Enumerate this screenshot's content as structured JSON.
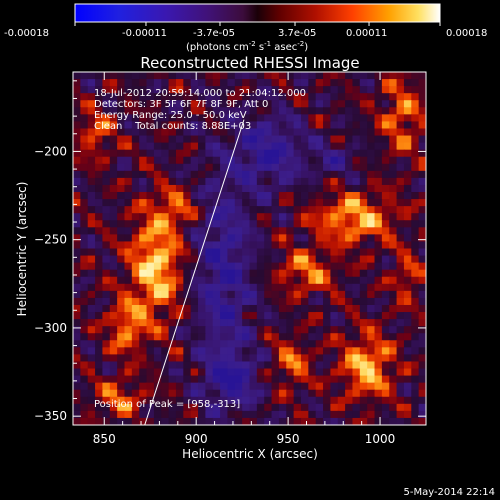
{
  "chart_data": {
    "type": "heatmap",
    "title": "Reconstructed RHESSI Image",
    "xlabel": "Heliocentric X (arcsec)",
    "ylabel": "Heliocentric Y (arcsec)",
    "xlim": [
      833,
      1025
    ],
    "ylim": [
      -355,
      -155
    ],
    "x_ticks": [
      850,
      900,
      950,
      1000
    ],
    "y_ticks": [
      -200,
      -250,
      -300,
      -350
    ],
    "colorbar": {
      "min": -0.00018,
      "max": 0.00018,
      "tick_labels": [
        "-0.00018",
        "-0.00011",
        "-3.7e-05",
        "3.7e-05",
        "0.00011",
        "0.00018"
      ],
      "tick_values": [
        -0.00018,
        -0.00011,
        -3.7e-05,
        3.7e-05,
        0.00011,
        0.00018
      ],
      "units_main": "(photons cm",
      "units_sup1": "-2",
      "units_mid1": " s",
      "units_sup2": "-1",
      "units_mid2": " asec",
      "units_sup3": "-2",
      "units_end": ")"
    },
    "annotations": [
      "18-Jul-2012 20:59:14.000 to 21:04:12.000",
      "Detectors: 3F 5F 6F 7F 8F 9F, Att 0",
      "Energy Range: 25.0 - 50.0 keV",
      "Clean    Total counts: 8.88E+03"
    ],
    "peak_label": "Position of Peak = [958,-313]",
    "peak": [
      958,
      -313
    ],
    "limb_line": [
      [
        872,
        -355
      ],
      [
        926,
        -182
      ]
    ],
    "hot_regions": [
      {
        "x": 878,
        "y": -265,
        "sx": 14,
        "sy": 30,
        "amp": 1.0
      },
      {
        "x": 862,
        "y": -300,
        "sx": 10,
        "sy": 15,
        "amp": 0.7
      },
      {
        "x": 890,
        "y": -232,
        "sx": 12,
        "sy": 10,
        "amp": 0.55
      },
      {
        "x": 986,
        "y": -238,
        "sx": 22,
        "sy": 14,
        "amp": 0.85
      },
      {
        "x": 960,
        "y": -268,
        "sx": 16,
        "sy": 12,
        "amp": 0.65
      },
      {
        "x": 993,
        "y": -322,
        "sx": 14,
        "sy": 18,
        "amp": 0.9
      },
      {
        "x": 952,
        "y": -320,
        "sx": 10,
        "sy": 14,
        "amp": 0.6
      },
      {
        "x": 1012,
        "y": -180,
        "sx": 12,
        "sy": 22,
        "amp": 0.6
      },
      {
        "x": 845,
        "y": -190,
        "sx": 10,
        "sy": 14,
        "amp": 0.55
      },
      {
        "x": 858,
        "y": -340,
        "sx": 14,
        "sy": 10,
        "amp": 0.6
      },
      {
        "x": 1015,
        "y": -272,
        "sx": 8,
        "sy": 14,
        "amp": 0.5
      }
    ],
    "cool_regions": [
      {
        "x": 915,
        "y": -270,
        "sx": 16,
        "sy": 60,
        "amp": 0.75
      },
      {
        "x": 940,
        "y": -200,
        "sx": 18,
        "sy": 20,
        "amp": 0.8
      },
      {
        "x": 920,
        "y": -330,
        "sx": 14,
        "sy": 14,
        "amp": 0.7
      },
      {
        "x": 975,
        "y": -205,
        "sx": 14,
        "sy": 10,
        "amp": 0.45
      }
    ]
  },
  "footer": {
    "date": "5-May-2014 22:14"
  }
}
